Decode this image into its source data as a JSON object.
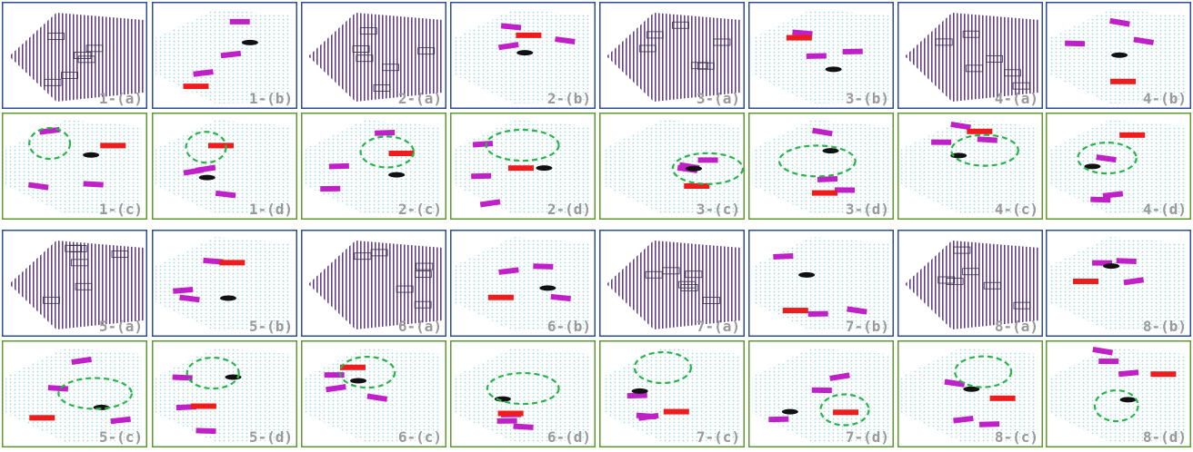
{
  "panels": [
    [
      "1-(a)",
      "1-(b)",
      "2-(a)",
      "2-(b)",
      "3-(a)",
      "3-(b)",
      "4-(a)",
      "4-(b)"
    ],
    [
      "1-(c)",
      "1-(d)",
      "2-(c)",
      "2-(d)",
      "3-(c)",
      "3-(d)",
      "4-(c)",
      "4-(d)"
    ],
    [
      "5-(a)",
      "5-(b)",
      "6-(a)",
      "6-(b)",
      "7-(a)",
      "7-(b)",
      "8-(a)",
      "8-(b)"
    ],
    [
      "5-(c)",
      "5-(d)",
      "6-(c)",
      "6-(d)",
      "7-(c)",
      "7-(d)",
      "8-(c)",
      "8-(d)"
    ]
  ]
}
